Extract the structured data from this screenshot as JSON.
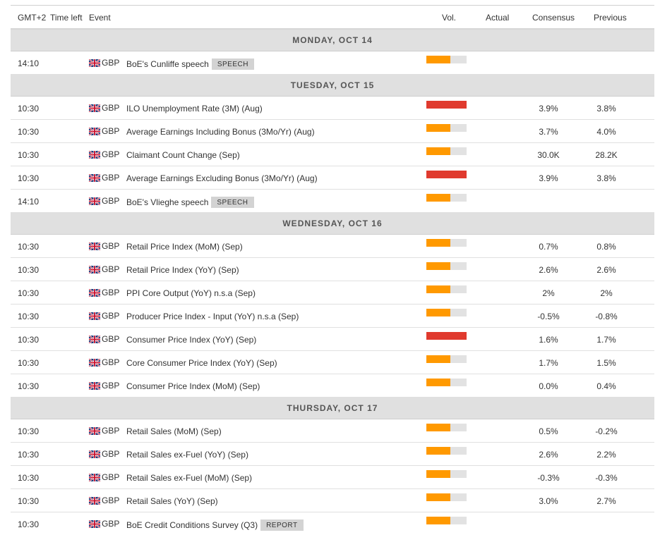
{
  "header": {
    "tz": "GMT+2",
    "time_left": "Time left",
    "event": "Event",
    "vol": "Vol.",
    "actual": "Actual",
    "consensus": "Consensus",
    "previous": "Previous"
  },
  "colors": {
    "medium": "#ff9900",
    "high": "#e03a2e",
    "bar_bg": "#e2e2e2"
  },
  "groups": [
    {
      "day": "MONDAY, OCT 14",
      "events": [
        {
          "time": "14:10",
          "currency": "GBP",
          "name": "BoE's Cunliffe speech",
          "tag": "SPEECH",
          "volatility": 0.6,
          "level": "medium",
          "actual": "",
          "consensus": "",
          "previous": ""
        }
      ]
    },
    {
      "day": "TUESDAY, OCT 15",
      "events": [
        {
          "time": "10:30",
          "currency": "GBP",
          "name": "ILO Unemployment Rate (3M) (Aug)",
          "tag": "",
          "volatility": 1.0,
          "level": "high",
          "actual": "",
          "consensus": "3.9%",
          "previous": "3.8%"
        },
        {
          "time": "10:30",
          "currency": "GBP",
          "name": "Average Earnings Including Bonus (3Mo/Yr) (Aug)",
          "tag": "",
          "volatility": 0.6,
          "level": "medium",
          "actual": "",
          "consensus": "3.7%",
          "previous": "4.0%"
        },
        {
          "time": "10:30",
          "currency": "GBP",
          "name": "Claimant Count Change (Sep)",
          "tag": "",
          "volatility": 0.6,
          "level": "medium",
          "actual": "",
          "consensus": "30.0K",
          "previous": "28.2K"
        },
        {
          "time": "10:30",
          "currency": "GBP",
          "name": "Average Earnings Excluding Bonus (3Mo/Yr) (Aug)",
          "tag": "",
          "volatility": 1.0,
          "level": "high",
          "actual": "",
          "consensus": "3.9%",
          "previous": "3.8%"
        },
        {
          "time": "14:10",
          "currency": "GBP",
          "name": "BoE's Vlieghe speech",
          "tag": "SPEECH",
          "volatility": 0.6,
          "level": "medium",
          "actual": "",
          "consensus": "",
          "previous": ""
        }
      ]
    },
    {
      "day": "WEDNESDAY, OCT 16",
      "events": [
        {
          "time": "10:30",
          "currency": "GBP",
          "name": "Retail Price Index (MoM) (Sep)",
          "tag": "",
          "volatility": 0.6,
          "level": "medium",
          "actual": "",
          "consensus": "0.7%",
          "previous": "0.8%"
        },
        {
          "time": "10:30",
          "currency": "GBP",
          "name": "Retail Price Index (YoY) (Sep)",
          "tag": "",
          "volatility": 0.6,
          "level": "medium",
          "actual": "",
          "consensus": "2.6%",
          "previous": "2.6%"
        },
        {
          "time": "10:30",
          "currency": "GBP",
          "name": "PPI Core Output (YoY) n.s.a (Sep)",
          "tag": "",
          "volatility": 0.6,
          "level": "medium",
          "actual": "",
          "consensus": "2%",
          "previous": "2%"
        },
        {
          "time": "10:30",
          "currency": "GBP",
          "name": "Producer Price Index - Input (YoY) n.s.a (Sep)",
          "tag": "",
          "volatility": 0.6,
          "level": "medium",
          "actual": "",
          "consensus": "-0.5%",
          "previous": "-0.8%"
        },
        {
          "time": "10:30",
          "currency": "GBP",
          "name": "Consumer Price Index (YoY) (Sep)",
          "tag": "",
          "volatility": 1.0,
          "level": "high",
          "actual": "",
          "consensus": "1.6%",
          "previous": "1.7%"
        },
        {
          "time": "10:30",
          "currency": "GBP",
          "name": "Core Consumer Price Index (YoY) (Sep)",
          "tag": "",
          "volatility": 0.6,
          "level": "medium",
          "actual": "",
          "consensus": "1.7%",
          "previous": "1.5%"
        },
        {
          "time": "10:30",
          "currency": "GBP",
          "name": "Consumer Price Index (MoM) (Sep)",
          "tag": "",
          "volatility": 0.6,
          "level": "medium",
          "actual": "",
          "consensus": "0.0%",
          "previous": "0.4%"
        }
      ]
    },
    {
      "day": "THURSDAY, OCT 17",
      "events": [
        {
          "time": "10:30",
          "currency": "GBP",
          "name": "Retail Sales (MoM) (Sep)",
          "tag": "",
          "volatility": 0.6,
          "level": "medium",
          "actual": "",
          "consensus": "0.5%",
          "previous": "-0.2%"
        },
        {
          "time": "10:30",
          "currency": "GBP",
          "name": "Retail Sales ex-Fuel (YoY) (Sep)",
          "tag": "",
          "volatility": 0.6,
          "level": "medium",
          "actual": "",
          "consensus": "2.6%",
          "previous": "2.2%"
        },
        {
          "time": "10:30",
          "currency": "GBP",
          "name": "Retail Sales ex-Fuel (MoM) (Sep)",
          "tag": "",
          "volatility": 0.6,
          "level": "medium",
          "actual": "",
          "consensus": "-0.3%",
          "previous": "-0.3%"
        },
        {
          "time": "10:30",
          "currency": "GBP",
          "name": "Retail Sales (YoY) (Sep)",
          "tag": "",
          "volatility": 0.6,
          "level": "medium",
          "actual": "",
          "consensus": "3.0%",
          "previous": "2.7%"
        },
        {
          "time": "10:30",
          "currency": "GBP",
          "name": "BoE Credit Conditions Survey (Q3)",
          "tag": "REPORT",
          "volatility": 0.6,
          "level": "medium",
          "actual": "",
          "consensus": "",
          "previous": ""
        }
      ]
    }
  ]
}
